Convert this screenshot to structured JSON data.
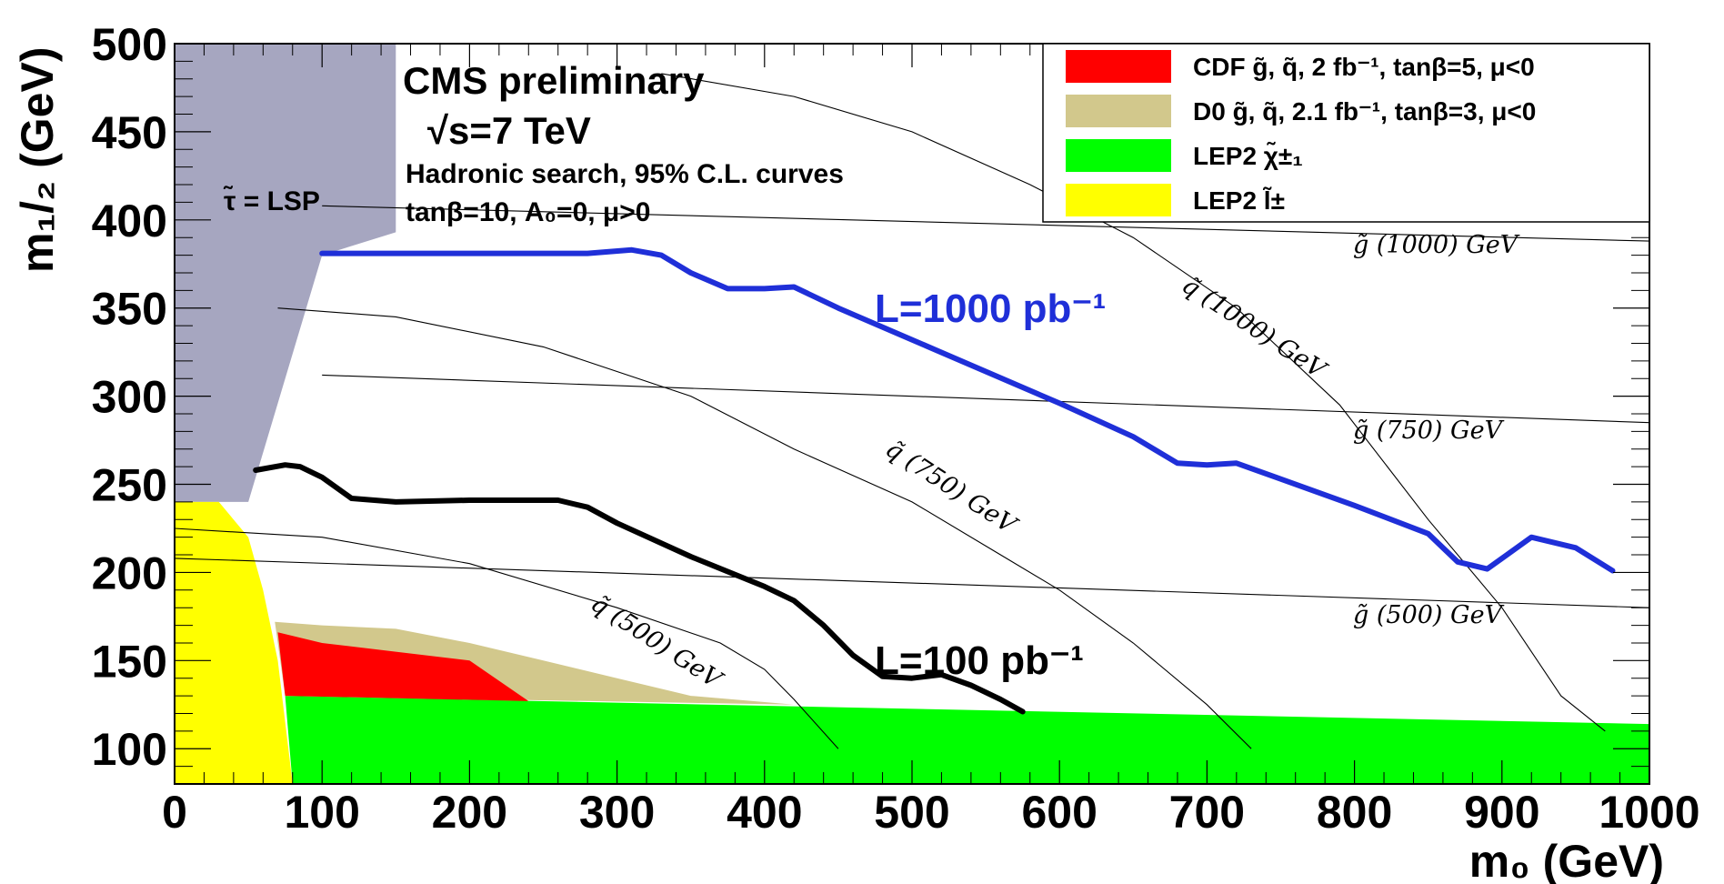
{
  "chart_data": {
    "type": "line",
    "xlabel": "m₀ (GeV)",
    "ylabel": "m₁/₂ (GeV)",
    "xlim": [
      0,
      1000
    ],
    "ylim": [
      80,
      500
    ],
    "x_ticks": [
      "0",
      "100",
      "200",
      "300",
      "400",
      "500",
      "600",
      "700",
      "800",
      "900",
      "1000"
    ],
    "y_ticks": [
      "100",
      "150",
      "200",
      "250",
      "300",
      "350",
      "400",
      "450",
      "500"
    ],
    "grid": false,
    "legend_position": "top-right",
    "annotations": {
      "experiment": "CMS preliminary",
      "energy": "√s=7 TeV",
      "search": "Hadronic search, 95% C.L. curves",
      "params": "tanβ=10, A₀=0, μ>0",
      "stau_lsp": "τ̃ = LSP"
    },
    "legend": [
      {
        "name": "CDF  g̃, q̃,   2 fb⁻¹,   tanβ=5,  μ<0",
        "color": "#ff0000"
      },
      {
        "name": "D0  g̃, q̃,   2.1 fb⁻¹,   tanβ=3,  μ<0",
        "color": "#d2c88c"
      },
      {
        "name": "LEP2  χ̃±₁",
        "color": "#00ff00"
      },
      {
        "name": "LEP2  l̃±",
        "color": "#ffff00"
      }
    ],
    "series": [
      {
        "name": "L=1000 pb⁻¹",
        "color": "#1f2fd8",
        "x": [
          100,
          150,
          200,
          250,
          280,
          310,
          330,
          350,
          375,
          400,
          420,
          450,
          500,
          550,
          600,
          650,
          680,
          700,
          720,
          750,
          800,
          850,
          870,
          890,
          920,
          950,
          975
        ],
        "y": [
          381,
          381,
          381,
          381,
          381,
          383,
          380,
          370,
          361,
          361,
          362,
          350,
          332,
          314,
          296,
          277,
          262,
          261,
          262,
          253,
          238,
          222,
          206,
          202,
          220,
          214,
          201
        ]
      },
      {
        "name": "L=100 pb⁻¹",
        "color": "#000000",
        "x": [
          55,
          75,
          85,
          100,
          120,
          150,
          200,
          260,
          280,
          300,
          350,
          400,
          420,
          440,
          460,
          480,
          500,
          520,
          540,
          560,
          575
        ],
        "y": [
          258,
          261,
          260,
          254,
          242,
          240,
          241,
          241,
          237,
          228,
          209,
          192,
          184,
          170,
          153,
          141,
          140,
          142,
          136,
          128,
          121
        ]
      }
    ],
    "contours": [
      {
        "label": "g̃ (1000) GeV",
        "x": [
          100,
          1000
        ],
        "y": [
          408,
          388
        ]
      },
      {
        "label": "g̃ (750) GeV",
        "x": [
          100,
          1000
        ],
        "y": [
          312,
          285
        ]
      },
      {
        "label": "g̃ (500) GeV",
        "x": [
          0,
          1000
        ],
        "y": [
          208,
          180
        ]
      },
      {
        "label": "q̃ (1000) GeV",
        "x": [
          330,
          420,
          500,
          580,
          650,
          720,
          790,
          850,
          900,
          940,
          970
        ],
        "y": [
          483,
          470,
          450,
          420,
          390,
          350,
          295,
          230,
          180,
          130,
          110
        ]
      },
      {
        "label": "q̃ (750) GeV",
        "x": [
          70,
          150,
          250,
          350,
          420,
          500,
          560,
          600,
          650,
          700,
          730
        ],
        "y": [
          350,
          345,
          328,
          300,
          270,
          240,
          210,
          190,
          160,
          125,
          100
        ]
      },
      {
        "label": "q̃ (500) GeV",
        "x": [
          0,
          100,
          200,
          300,
          370,
          400,
          420,
          450
        ],
        "y": [
          225,
          220,
          205,
          180,
          160,
          145,
          128,
          100
        ]
      }
    ],
    "regions": [
      {
        "name": "stau_lsp",
        "color": "#a6a6c0",
        "x": [
          0,
          150,
          150,
          100,
          50,
          0
        ],
        "y": [
          500,
          500,
          393,
          380,
          240,
          240
        ]
      },
      {
        "name": "LEP2 chargino",
        "color": "#00ff00",
        "x": [
          75,
          1000,
          1000,
          80
        ],
        "y": [
          130,
          114,
          80,
          80
        ]
      },
      {
        "name": "LEP2 slepton",
        "color": "#ffff00",
        "x": [
          0,
          30,
          50,
          60,
          70,
          80,
          0
        ],
        "y": [
          240,
          240,
          220,
          190,
          150,
          80,
          80
        ]
      },
      {
        "name": "D0",
        "color": "#d2c88c",
        "x": [
          68,
          100,
          150,
          200,
          250,
          300,
          350,
          420,
          75
        ],
        "y": [
          172,
          170,
          168,
          160,
          150,
          140,
          130,
          125,
          130
        ]
      },
      {
        "name": "CDF",
        "color": "#ff0000",
        "x": [
          70,
          100,
          150,
          200,
          240,
          75
        ],
        "y": [
          166,
          160,
          155,
          150,
          127,
          130
        ]
      }
    ]
  }
}
